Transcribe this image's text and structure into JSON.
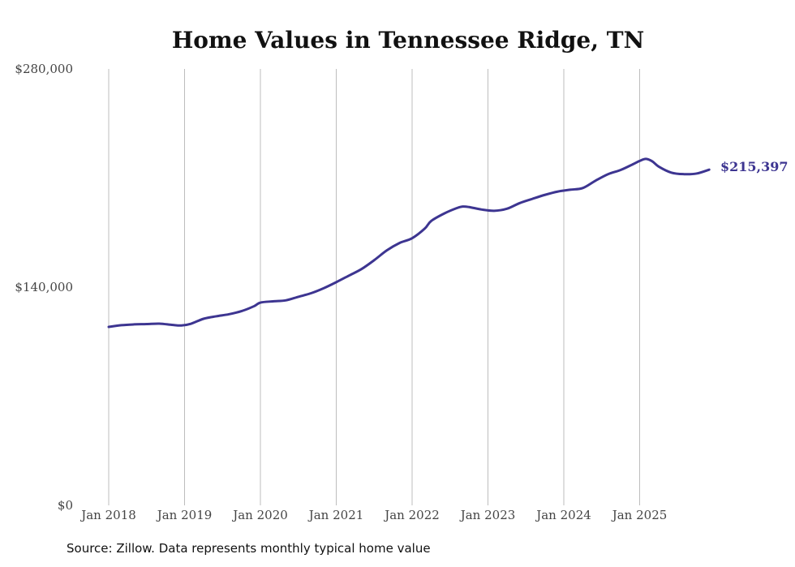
{
  "chart_data": {
    "type": "line",
    "title": "Home Values in Tennessee Ridge, TN",
    "xlabel": "",
    "ylabel": "",
    "ylim": [
      0,
      280000
    ],
    "y_ticks": [
      {
        "value": 0,
        "label": "$0"
      },
      {
        "value": 140000,
        "label": "$140,000"
      },
      {
        "value": 280000,
        "label": "$280,000"
      }
    ],
    "x_ticks": [
      {
        "year": 2018,
        "label": "Jan 2018"
      },
      {
        "year": 2019,
        "label": "Jan 2019"
      },
      {
        "year": 2020,
        "label": "Jan 2020"
      },
      {
        "year": 2021,
        "label": "Jan 2021"
      },
      {
        "year": 2022,
        "label": "Jan 2022"
      },
      {
        "year": 2023,
        "label": "Jan 2023"
      },
      {
        "year": 2024,
        "label": "Jan 2024"
      },
      {
        "year": 2025,
        "label": "Jan 2025"
      }
    ],
    "x_range": [
      2018.0,
      2025.917
    ],
    "grid": "vertical",
    "series": [
      {
        "name": "Typical home value",
        "color": "#3d3591",
        "points": [
          [
            2018.0,
            114500
          ],
          [
            2018.167,
            115600
          ],
          [
            2018.333,
            116100
          ],
          [
            2018.5,
            116300
          ],
          [
            2018.667,
            116600
          ],
          [
            2018.833,
            115800
          ],
          [
            2018.958,
            115400
          ],
          [
            2019.083,
            116500
          ],
          [
            2019.25,
            119700
          ],
          [
            2019.417,
            121300
          ],
          [
            2019.583,
            122600
          ],
          [
            2019.75,
            124600
          ],
          [
            2019.917,
            127800
          ],
          [
            2020.0,
            130100
          ],
          [
            2020.167,
            130900
          ],
          [
            2020.333,
            131500
          ],
          [
            2020.5,
            133800
          ],
          [
            2020.667,
            136100
          ],
          [
            2020.833,
            139300
          ],
          [
            2021.0,
            143200
          ],
          [
            2021.167,
            147400
          ],
          [
            2021.333,
            151600
          ],
          [
            2021.5,
            157300
          ],
          [
            2021.667,
            163600
          ],
          [
            2021.833,
            168300
          ],
          [
            2022.0,
            171400
          ],
          [
            2022.167,
            177600
          ],
          [
            2022.25,
            182400
          ],
          [
            2022.417,
            187100
          ],
          [
            2022.583,
            190600
          ],
          [
            2022.667,
            191700
          ],
          [
            2022.75,
            191400
          ],
          [
            2022.917,
            189800
          ],
          [
            2023.083,
            189000
          ],
          [
            2023.25,
            190300
          ],
          [
            2023.417,
            193900
          ],
          [
            2023.583,
            196600
          ],
          [
            2023.75,
            199200
          ],
          [
            2023.917,
            201300
          ],
          [
            2024.083,
            202500
          ],
          [
            2024.25,
            203600
          ],
          [
            2024.417,
            208300
          ],
          [
            2024.583,
            212500
          ],
          [
            2024.75,
            215200
          ],
          [
            2024.917,
            219000
          ],
          [
            2025.0,
            221000
          ],
          [
            2025.083,
            222300
          ],
          [
            2025.167,
            220700
          ],
          [
            2025.25,
            217400
          ],
          [
            2025.417,
            213500
          ],
          [
            2025.583,
            212500
          ],
          [
            2025.75,
            212900
          ],
          [
            2025.917,
            215397
          ]
        ]
      }
    ],
    "end_label": "$215,397"
  },
  "footer": {
    "source": "Source: Zillow. Data represents monthly typical home value"
  }
}
